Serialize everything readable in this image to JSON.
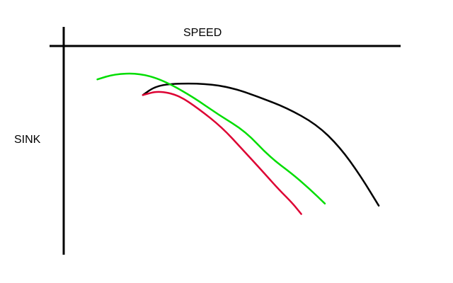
{
  "chart_data": {
    "type": "line",
    "title": "",
    "xlabel": "SPEED",
    "ylabel": "SINK",
    "xlim": [
      0,
      10
    ],
    "ylim": [
      0,
      10
    ],
    "y_inverted": true,
    "grid": false,
    "legend": "none",
    "series": [
      {
        "color": "#000000",
        "points": [
          [
            2.35,
            2.35
          ],
          [
            2.7,
            1.95
          ],
          [
            3.2,
            1.8
          ],
          [
            4.2,
            1.8
          ],
          [
            5.0,
            2.0
          ],
          [
            5.8,
            2.45
          ],
          [
            6.6,
            2.95
          ],
          [
            7.5,
            3.75
          ],
          [
            8.2,
            4.85
          ],
          [
            8.8,
            6.2
          ],
          [
            9.35,
            7.65
          ]
        ]
      },
      {
        "color": "#00dd00",
        "points": [
          [
            1.0,
            1.6
          ],
          [
            1.5,
            1.35
          ],
          [
            2.2,
            1.3
          ],
          [
            2.9,
            1.6
          ],
          [
            3.8,
            2.4
          ],
          [
            4.6,
            3.3
          ],
          [
            5.4,
            4.1
          ],
          [
            6.1,
            5.3
          ],
          [
            6.8,
            6.15
          ],
          [
            7.3,
            6.85
          ],
          [
            7.75,
            7.55
          ]
        ]
      },
      {
        "color": "#dd0033",
        "points": [
          [
            2.35,
            2.35
          ],
          [
            2.8,
            2.15
          ],
          [
            3.4,
            2.35
          ],
          [
            4.0,
            3.0
          ],
          [
            4.7,
            3.9
          ],
          [
            5.3,
            4.95
          ],
          [
            5.9,
            6.0
          ],
          [
            6.4,
            6.9
          ],
          [
            6.8,
            7.55
          ],
          [
            7.05,
            8.05
          ]
        ]
      }
    ]
  }
}
